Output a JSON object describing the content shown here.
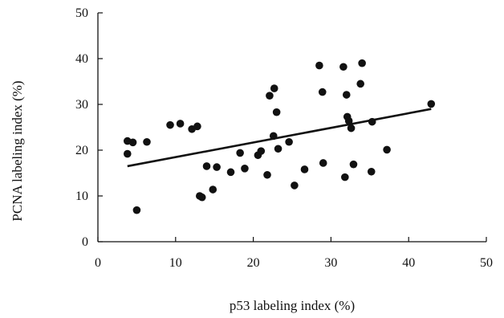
{
  "chart_data": {
    "type": "scatter",
    "title": "",
    "xlabel": "p53 labeling index (%)",
    "ylabel": "PCNA labeling index (%)",
    "xlim": [
      0,
      50
    ],
    "ylim": [
      0,
      50
    ],
    "xticks": [
      0,
      10,
      20,
      30,
      40,
      50
    ],
    "yticks": [
      0,
      10,
      20,
      30,
      40,
      50
    ],
    "grid": false,
    "legend": false,
    "colors": {
      "points": "#111111",
      "trendline": "#111111",
      "axis": "#111111"
    },
    "series": [
      {
        "points": [
          [
            3.8,
            22.0
          ],
          [
            3.8,
            19.2
          ],
          [
            4.5,
            21.7
          ],
          [
            5.0,
            6.9
          ],
          [
            6.3,
            21.8
          ],
          [
            9.3,
            25.5
          ],
          [
            10.6,
            25.8
          ],
          [
            12.1,
            24.6
          ],
          [
            12.8,
            25.2
          ],
          [
            13.1,
            10.0
          ],
          [
            13.4,
            9.7
          ],
          [
            14.0,
            16.5
          ],
          [
            14.8,
            11.4
          ],
          [
            15.3,
            16.3
          ],
          [
            17.1,
            15.2
          ],
          [
            18.3,
            19.4
          ],
          [
            18.9,
            16.0
          ],
          [
            20.6,
            18.9
          ],
          [
            21.0,
            19.8
          ],
          [
            21.8,
            14.6
          ],
          [
            22.1,
            31.9
          ],
          [
            22.6,
            23.1
          ],
          [
            22.7,
            33.5
          ],
          [
            23.0,
            28.3
          ],
          [
            23.2,
            20.3
          ],
          [
            24.6,
            21.8
          ],
          [
            25.3,
            12.3
          ],
          [
            26.6,
            15.8
          ],
          [
            28.5,
            38.5
          ],
          [
            28.9,
            32.7
          ],
          [
            29.0,
            17.2
          ],
          [
            31.6,
            38.2
          ],
          [
            31.8,
            14.1
          ],
          [
            32.0,
            32.1
          ],
          [
            32.1,
            27.3
          ],
          [
            32.3,
            26.4
          ],
          [
            32.6,
            24.8
          ],
          [
            32.9,
            16.9
          ],
          [
            33.8,
            34.5
          ],
          [
            34.0,
            39.0
          ],
          [
            35.2,
            15.3
          ],
          [
            35.3,
            26.2
          ],
          [
            37.2,
            20.1
          ],
          [
            42.9,
            30.1
          ]
        ]
      }
    ],
    "trendline": {
      "x": [
        3.8,
        42.9
      ],
      "y": [
        16.5,
        29.0
      ]
    }
  }
}
